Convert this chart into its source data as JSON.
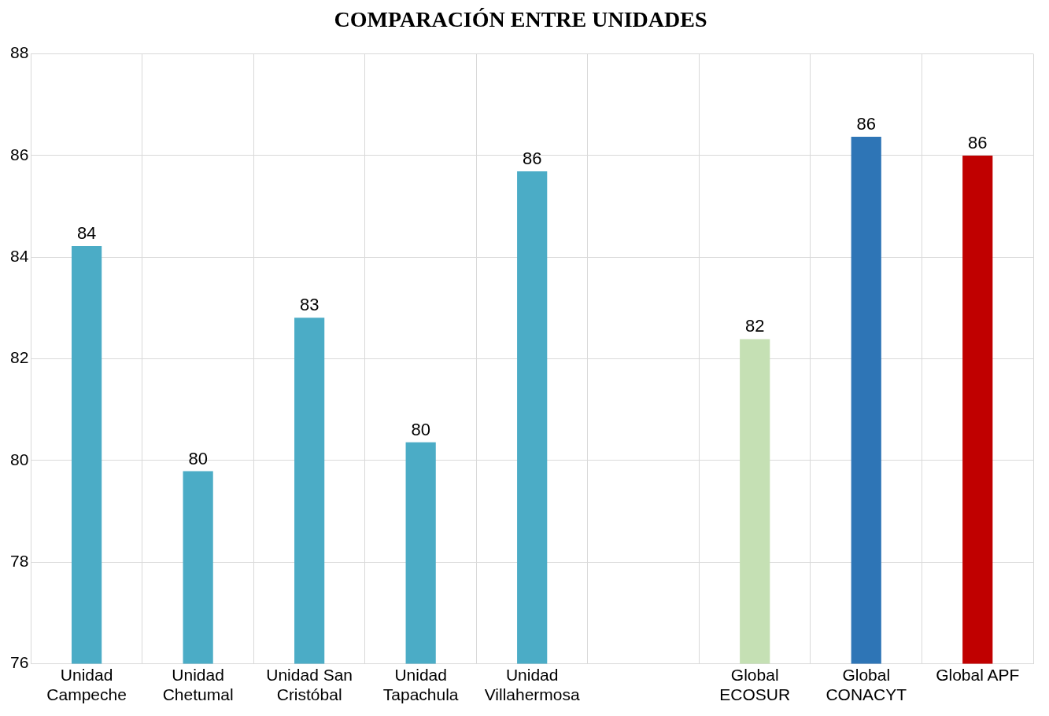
{
  "chart_data": {
    "type": "bar",
    "title": "COMPARACIÓN ENTRE UNIDADES",
    "categories": [
      "Unidad Campeche",
      "Unidad Chetumal",
      "Unidad San Cristóbal",
      "Unidad Tapachula",
      "Unidad Villahermosa",
      null,
      "Global ECOSUR",
      "Global CONACYT",
      "Global APF"
    ],
    "values": [
      84.22,
      79.79,
      82.81,
      80.36,
      85.69,
      null,
      82.39,
      86.37,
      86.0
    ],
    "colors": [
      "#4bacc6",
      "#4bacc6",
      "#4bacc6",
      "#4bacc6",
      "#4bacc6",
      "#4bacc6",
      "#c5e0b4",
      "#2e75b6",
      "#c00000"
    ],
    "value_labels": [
      "84",
      "80",
      "83",
      "80",
      "86",
      null,
      "82",
      "86",
      "86"
    ],
    "ylim": [
      76,
      88
    ],
    "yticks": [
      76,
      78,
      80,
      82,
      84,
      86,
      88
    ],
    "grid": true,
    "legend": false
  }
}
